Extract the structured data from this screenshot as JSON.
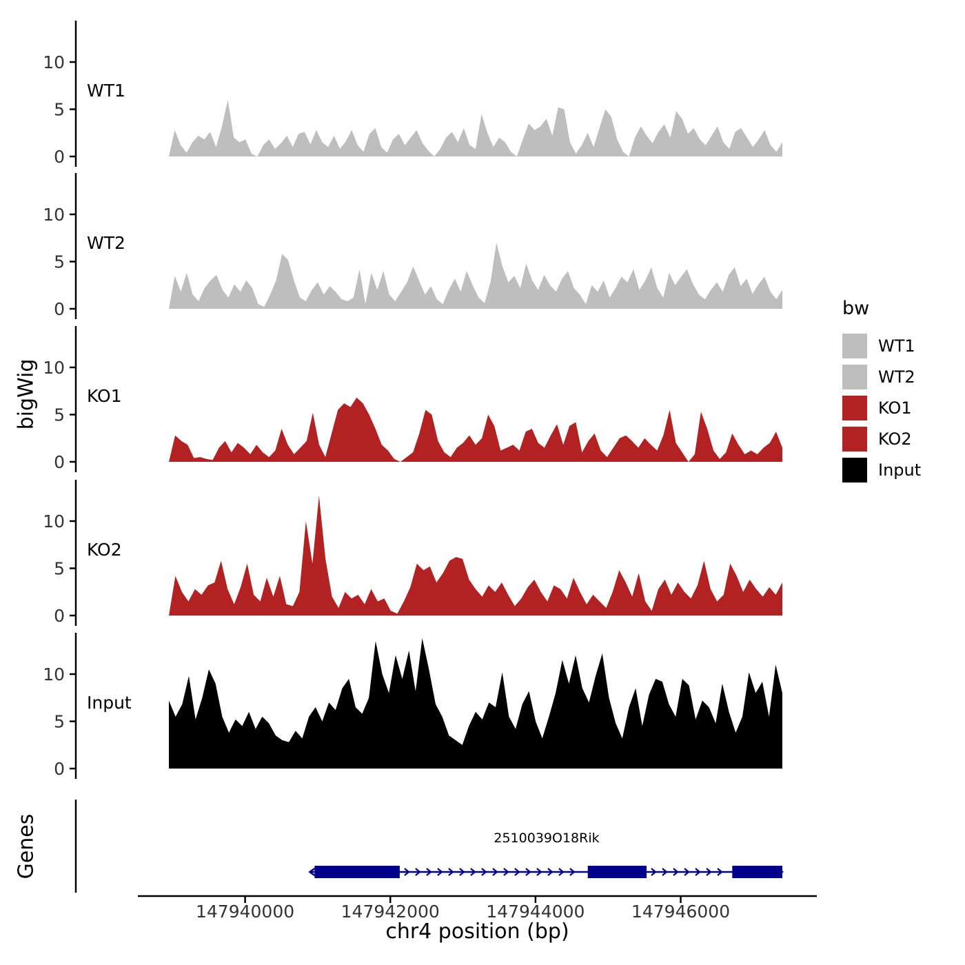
{
  "labels": {
    "y_axis": "bigWig",
    "genes_axis": "Genes",
    "x_axis_title": "chr4 position (bp)"
  },
  "colors": {
    "grey": "#BEBEBE",
    "red": "#B22222",
    "black": "#000000",
    "gene_blue": "#00008B",
    "axis": "#000000",
    "tick_text": "#333333"
  },
  "chart_data": {
    "type": "area",
    "title": "",
    "x_axis": {
      "label": "chr4 position (bp)",
      "region_start": 147938950,
      "region_end": 147947400,
      "ticks": [
        147940000,
        147942000,
        147944000,
        147946000
      ]
    },
    "y_axis": {
      "label": "bigWig",
      "ticks": [
        0,
        5,
        10
      ],
      "max": 14.4
    },
    "tracks": [
      {
        "name": "WT1",
        "color": "#BEBEBE",
        "values": [
          0,
          2.8,
          1.2,
          0.4,
          1.5,
          2.2,
          1.8,
          2.6,
          1.0,
          3.2,
          6.0,
          2.0,
          1.5,
          1.8,
          0.3,
          0,
          1.2,
          1.8,
          0.8,
          1.4,
          2.2,
          1.0,
          2.4,
          2.6,
          1.3,
          2.8,
          1.5,
          1.0,
          2.2,
          0.8,
          1.6,
          2.8,
          1.2,
          0.5,
          2.4,
          3.0,
          1.0,
          0.4,
          1.8,
          2.4,
          1.2,
          2.0,
          2.8,
          1.4,
          0.6,
          0,
          0.8,
          2.0,
          2.6,
          1.5,
          3.0,
          1.2,
          0.8,
          4.5,
          2.5,
          1.0,
          2.0,
          1.5,
          0.5,
          0,
          1.8,
          3.5,
          2.8,
          3.2,
          4.0,
          2.2,
          5.2,
          5.0,
          1.5,
          0.3,
          1.2,
          2.5,
          1.0,
          3.0,
          5.0,
          4.2,
          1.8,
          0.5,
          0,
          2.0,
          3.2,
          2.2,
          1.4,
          2.6,
          3.4,
          2.0,
          4.8,
          4.0,
          2.4,
          3.0,
          1.8,
          1.2,
          2.2,
          3.2,
          1.5,
          0.8,
          2.6,
          3.0,
          2.0,
          1.0,
          1.8,
          2.8,
          1.2,
          0.5,
          1.5
        ]
      },
      {
        "name": "WT2",
        "color": "#BEBEBE",
        "values": [
          0,
          3.5,
          1.8,
          3.8,
          1.5,
          0.8,
          2.2,
          3.0,
          3.6,
          2.0,
          1.2,
          2.6,
          1.8,
          3.0,
          2.2,
          0.5,
          0.2,
          1.5,
          3.0,
          5.8,
          5.2,
          3.0,
          1.2,
          0.8,
          2.0,
          2.8,
          1.5,
          2.4,
          1.8,
          1.0,
          0.8,
          1.2,
          4.2,
          0.5,
          3.8,
          2.0,
          4.0,
          1.5,
          0.8,
          1.8,
          2.8,
          4.5,
          3.0,
          1.5,
          2.4,
          1.0,
          0.5,
          2.0,
          3.2,
          1.8,
          4.0,
          2.5,
          1.2,
          0.6,
          2.8,
          7.0,
          4.5,
          2.8,
          3.5,
          2.2,
          4.8,
          3.0,
          2.0,
          3.6,
          2.5,
          1.8,
          3.2,
          4.0,
          2.2,
          1.5,
          0.5,
          2.5,
          1.8,
          3.0,
          1.2,
          2.2,
          3.4,
          2.8,
          4.2,
          2.0,
          3.0,
          4.4,
          2.2,
          1.2,
          3.8,
          2.5,
          3.4,
          4.2,
          2.6,
          1.5,
          1.0,
          2.0,
          2.8,
          1.8,
          3.6,
          4.4,
          2.4,
          3.2,
          1.6,
          2.6,
          3.4,
          1.8,
          1.0,
          2.0
        ]
      },
      {
        "name": "KO1",
        "color": "#B22222",
        "values": [
          0,
          2.8,
          2.2,
          1.8,
          0.4,
          0.5,
          0.3,
          0.2,
          1.5,
          2.2,
          1.0,
          2.0,
          1.5,
          0.8,
          1.8,
          1.0,
          0.5,
          1.2,
          3.5,
          1.8,
          0.8,
          1.5,
          2.2,
          5.2,
          1.8,
          0.5,
          3.0,
          5.5,
          6.2,
          5.8,
          6.8,
          6.2,
          5.0,
          3.5,
          1.8,
          1.2,
          0.3,
          0,
          0.5,
          1.0,
          3.0,
          5.5,
          5.0,
          2.2,
          1.0,
          0.5,
          1.5,
          2.0,
          2.8,
          1.8,
          2.5,
          5.0,
          3.8,
          1.2,
          1.5,
          1.8,
          1.2,
          3.2,
          3.5,
          2.0,
          1.5,
          2.8,
          4.0,
          1.8,
          3.8,
          4.2,
          1.0,
          2.2,
          3.0,
          1.2,
          0.5,
          1.5,
          2.5,
          2.8,
          2.2,
          1.5,
          2.5,
          1.8,
          1.2,
          2.8,
          5.5,
          2.0,
          1.0,
          0,
          0.8,
          5.3,
          3.5,
          1.2,
          0.3,
          1.0,
          3.0,
          1.8,
          0.8,
          1.2,
          0.8,
          1.5,
          2.0,
          3.2,
          1.5
        ]
      },
      {
        "name": "KO2",
        "color": "#B22222",
        "values": [
          0,
          4.2,
          2.5,
          1.5,
          2.8,
          2.2,
          3.2,
          3.5,
          5.8,
          2.8,
          1.2,
          3.0,
          5.5,
          2.2,
          1.5,
          4.0,
          2.0,
          4.2,
          1.2,
          1.0,
          2.5,
          10.0,
          5.5,
          12.7,
          6.0,
          2.0,
          0.8,
          2.5,
          1.8,
          2.2,
          1.2,
          2.8,
          1.5,
          1.8,
          0.5,
          0.2,
          1.5,
          3.0,
          5.5,
          4.8,
          5.2,
          3.5,
          4.5,
          5.8,
          6.2,
          6.0,
          3.8,
          2.8,
          2.0,
          3.2,
          2.5,
          3.5,
          2.2,
          1.0,
          1.8,
          3.0,
          3.8,
          2.5,
          1.5,
          3.2,
          2.8,
          1.8,
          4.0,
          2.5,
          1.2,
          2.2,
          1.5,
          0.8,
          2.5,
          4.8,
          3.5,
          2.0,
          4.5,
          1.5,
          0.5,
          2.8,
          3.8,
          2.2,
          3.5,
          2.5,
          1.8,
          3.2,
          5.8,
          2.8,
          1.5,
          2.2,
          5.5,
          4.2,
          2.5,
          3.8,
          2.8,
          2.0,
          3.0,
          2.2,
          3.5
        ]
      },
      {
        "name": "Input",
        "color": "#000000",
        "values": [
          7.2,
          5.5,
          6.8,
          9.8,
          5.2,
          7.5,
          10.5,
          9.0,
          5.5,
          3.8,
          5.2,
          4.5,
          6.0,
          4.2,
          5.5,
          4.8,
          3.5,
          3.0,
          2.8,
          4.0,
          3.2,
          5.5,
          6.5,
          5.0,
          7.0,
          6.2,
          8.5,
          9.5,
          6.5,
          5.8,
          7.5,
          13.5,
          10.0,
          8.0,
          12.0,
          9.5,
          12.5,
          8.2,
          13.8,
          10.5,
          6.8,
          5.5,
          3.5,
          3.0,
          2.5,
          4.5,
          6.0,
          5.2,
          7.0,
          6.5,
          10.2,
          5.5,
          4.2,
          6.8,
          8.2,
          5.0,
          3.2,
          5.5,
          8.0,
          11.5,
          9.0,
          12.0,
          8.5,
          7.0,
          9.8,
          12.2,
          7.5,
          4.8,
          3.2,
          6.5,
          8.5,
          4.5,
          7.8,
          9.5,
          9.2,
          6.8,
          5.5,
          9.5,
          8.8,
          5.2,
          7.2,
          6.5,
          4.8,
          9.0,
          6.0,
          3.8,
          5.5,
          10.2,
          8.0,
          9.2,
          5.5,
          11.0,
          8.0
        ]
      }
    ],
    "gene": {
      "name": "2510039O18Rik",
      "strand": "+",
      "start": 147940900,
      "end": 147947400,
      "exons": [
        [
          147940900,
          147942130
        ],
        [
          147944720,
          147945530
        ],
        [
          147946710,
          147947400
        ]
      ]
    },
    "legend": {
      "title": "bw",
      "entries": [
        "WT1",
        "WT2",
        "KO1",
        "KO2",
        "Input"
      ]
    }
  }
}
